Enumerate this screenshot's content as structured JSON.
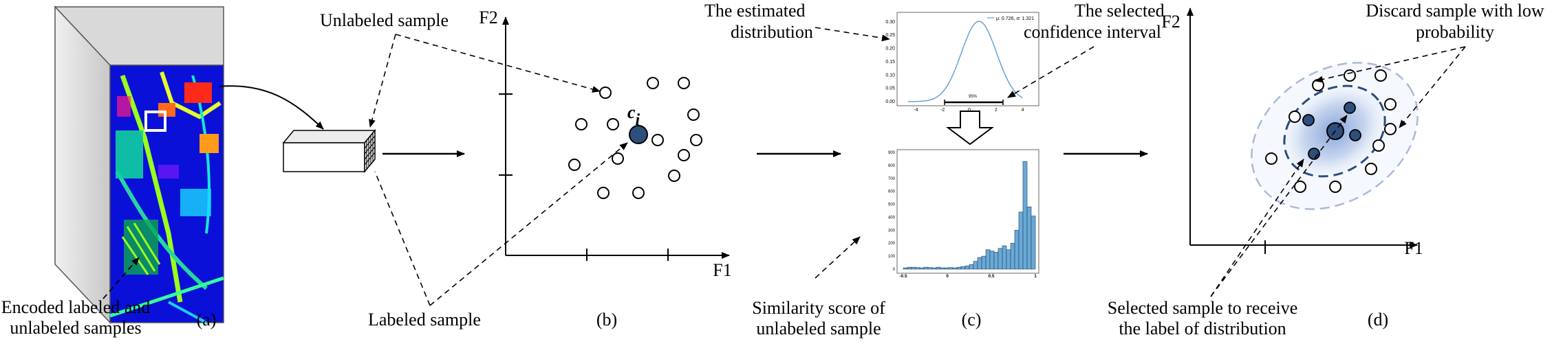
{
  "panels": {
    "a": {
      "caption": "(a)",
      "bottom_label_line1": "Encoded labeled and",
      "bottom_label_line2": "unlabeled samples"
    },
    "b": {
      "caption": "(b)",
      "x_axis_label": "F1",
      "y_axis_label": "F2",
      "center_label": "c",
      "center_subscript": "i",
      "unlabeled_label": "Unlabeled sample",
      "labeled_label": "Labeled sample"
    },
    "c": {
      "caption": "(c)",
      "estimated_line1": "The estimated",
      "estimated_line2": "distribution",
      "selected_line1": "The selected",
      "selected_line2": "confidence interval",
      "similarity_line1": "Similarity score of",
      "similarity_line2": "unlabeled sample",
      "legend_text": "μ: 0.726, σ: 1.321",
      "ci_label": "95%",
      "pdf_yticks": [
        "0.30",
        "0.25",
        "0.20",
        "0.15",
        "0.10",
        "0.05",
        "0.00"
      ],
      "pdf_xticks": [
        "-4",
        "-2",
        "0",
        "2",
        "4"
      ],
      "hist_yticks": [
        "900",
        "800",
        "700",
        "600",
        "500",
        "400",
        "300",
        "200",
        "100",
        "0"
      ],
      "hist_xticks": [
        "-0.5",
        "0",
        "0.5",
        "1"
      ],
      "chart_data": {
        "type": "bar",
        "x_range": [
          -0.5,
          1.0
        ],
        "ylim": [
          0,
          900
        ],
        "bin_counts": [
          10,
          15,
          15,
          12,
          10,
          15,
          12,
          10,
          15,
          10,
          10,
          12,
          10,
          15,
          20,
          25,
          35,
          60,
          90,
          100,
          150,
          140,
          130,
          160,
          180,
          150,
          200,
          300,
          440,
          830,
          480,
          410
        ]
      }
    },
    "d": {
      "caption": "(d)",
      "x_axis_label": "F1",
      "y_axis_label": "F2",
      "discard_line1": "Discard sample with low",
      "discard_line2": "probability",
      "selected_line1": "Selected sample to receive",
      "selected_line2": "the label of distribution"
    }
  },
  "colors": {
    "labeled_fill": "#2e4f7c",
    "dashed_ellipse_inner": "#2b4c7e",
    "dashed_ellipse_outer": "#a9b9d8",
    "histogram_bar": "#6aa9d6",
    "pdf_curve": "#5b9bd5"
  }
}
